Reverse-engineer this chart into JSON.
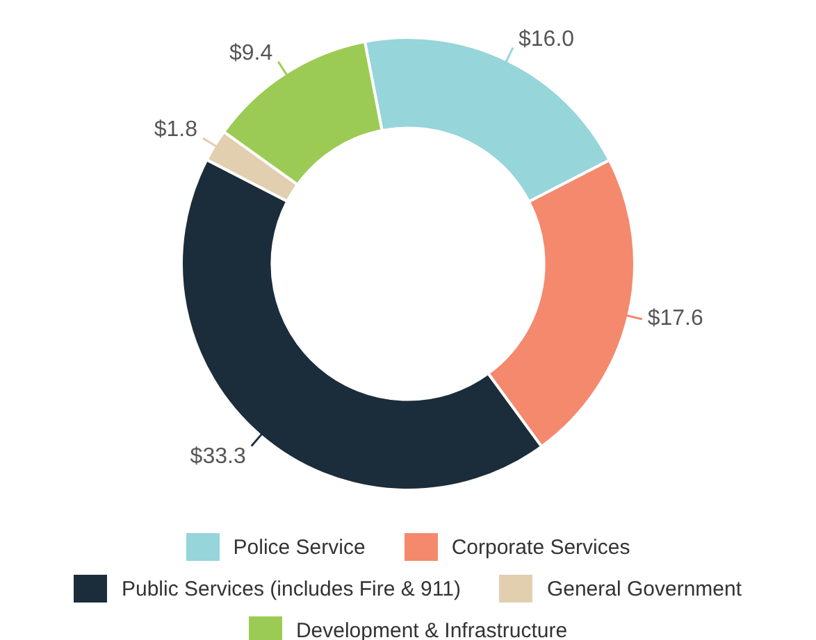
{
  "chart_data": {
    "type": "donut",
    "categories": [
      "Police Service",
      "Corporate Services",
      "Public Services (includes Fire & 911)",
      "General Government",
      "Development & Infrastructure"
    ],
    "values": [
      16.0,
      17.6,
      33.3,
      1.8,
      9.4
    ],
    "value_labels": [
      "$16.0",
      "$17.6",
      "$33.3",
      "$1.8",
      "$9.4"
    ],
    "colors": [
      "#96d5da",
      "#f4896e",
      "#1b2d3b",
      "#e2cfb0",
      "#9ccb55"
    ],
    "legend": "bottom"
  }
}
